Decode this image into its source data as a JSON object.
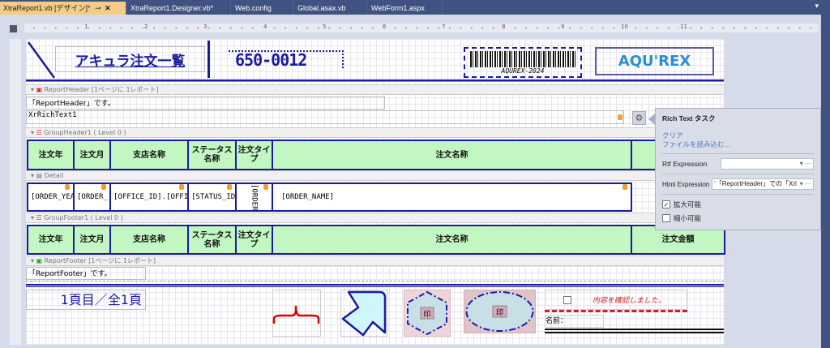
{
  "tabs": [
    {
      "label": "XtraReport1.vb [デザイン]*",
      "active": true
    },
    {
      "label": "XtraReport1.Designer.vb*"
    },
    {
      "label": "Web.config"
    },
    {
      "label": "Global.asax.vb"
    },
    {
      "label": "WebForm1.aspx"
    }
  ],
  "ruler": {
    "marks": [
      "1",
      "2",
      "3",
      "4",
      "5",
      "6",
      "7",
      "8",
      "9",
      "10",
      "11"
    ]
  },
  "header": {
    "title": "アキュラ注文一覧",
    "zip": "650-0012",
    "barcode_text": "AQUREX-2024",
    "logo": "AQU'REX"
  },
  "bands": {
    "report_header": "ReportHeader [1ページに 1レポート]",
    "group_header": "GroupHeader1 ( Level 0 )",
    "detail": "Detail",
    "group_footer": "GroupFooter1 ( Level 0 )",
    "report_footer": "ReportFooter [1ページに 1レポート]"
  },
  "report_header_text": "「ReportHeader」です。",
  "rich_text": "XrRichText1",
  "columns": [
    "注文年",
    "注文月",
    "支店名称",
    "ステータス名称",
    "注文タイプ",
    "注文名称",
    "注文金額"
  ],
  "detail_cells": [
    "[ORDER_YEA",
    "[ORDER_",
    "[OFFICE_ID].[OFFIC",
    "[STATUS_ID",
    "[ORDER",
    "[ORDER_NAME]"
  ],
  "footer_columns": [
    "注文年",
    "注文月",
    "支店名称",
    "ステータス名称",
    "注文タイプ",
    "注文名称",
    "注文金額"
  ],
  "report_footer_text": "「ReportFooter」です。",
  "page_info": "1頁目／全1頁",
  "stamp_text": "印",
  "confirm_text": "内容を確認しました。",
  "name_label": "名前：",
  "popup": {
    "title": "Rich Text タスク",
    "links": [
      "クリア",
      "ファイルを読み込む..."
    ],
    "rtf_label": "Rtf Expression",
    "rtf_value": "",
    "html_label": "Html Expression",
    "html_value": "'「ReportHeader」での「Xrl",
    "can_grow_label": "拡大可能",
    "can_grow": true,
    "can_shrink_label": "縮小可能",
    "can_shrink": false
  },
  "colors": {
    "accent": "#1a1aa0",
    "header_fill": "#c2f7c2",
    "tab_active": "#f5cc84",
    "tab_bar": "#40527f"
  }
}
